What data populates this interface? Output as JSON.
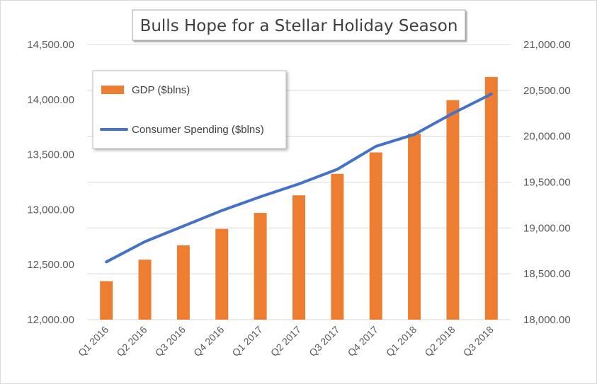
{
  "chart_data": {
    "type": "bar",
    "title": "Bulls Hope for a Stellar Holiday Season",
    "categories": [
      "Q1 2016",
      "Q2 2016",
      "Q3 2016",
      "Q4 2016",
      "Q1 2017",
      "Q2 2017",
      "Q3 2017",
      "Q4 2017",
      "Q1 2018",
      "Q2 2018",
      "Q3 2018"
    ],
    "series": [
      {
        "name": "GDP ($blns)",
        "type": "bar",
        "axis": "left",
        "color": "#ED7D31",
        "values": [
          12350,
          12545,
          12675,
          12825,
          12970,
          13130,
          13325,
          13520,
          13690,
          13995,
          14205
        ]
      },
      {
        "name": "Consumer Spending ($blns)",
        "type": "line",
        "axis": "right",
        "color": "#4472C4",
        "values": [
          18630,
          18850,
          19020,
          19190,
          19340,
          19480,
          19640,
          19890,
          20020,
          20250,
          20460
        ]
      }
    ],
    "y_left": {
      "range": [
        12000,
        14500
      ],
      "ticks": [
        12000,
        12500,
        13000,
        13500,
        14000,
        14500
      ],
      "tick_labels": [
        "12,000.00",
        "12,500.00",
        "13,000.00",
        "13,500.00",
        "14,000.00",
        "14,500.00"
      ]
    },
    "y_right": {
      "range": [
        18000,
        21000
      ],
      "ticks": [
        18000,
        18500,
        19000,
        19500,
        20000,
        20500,
        21000
      ],
      "tick_labels": [
        "18,000.00",
        "18,500.00",
        "19,000.00",
        "19,500.00",
        "20,000.00",
        "20,500.00",
        "21,000.00"
      ]
    },
    "grid": true,
    "legend": "top-left"
  }
}
